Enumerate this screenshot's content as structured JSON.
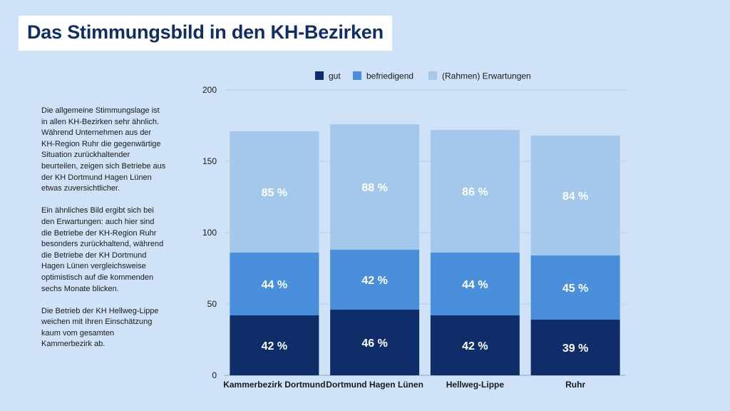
{
  "title": "Das Stimmungsbild in den KH-Bezirken",
  "paragraphs": [
    "Die allgemeine Stimmungslage ist in allen KH-Bezirken sehr ähnlich. Während Unternehmen aus der KH-Region Ruhr die gegenwärtige Situation zurückhaltender beurteilen, zeigen sich Betriebe aus der KH Dortmund Hagen Lünen etwas zuversichtlicher.",
    "Ein ähnliches Bild ergibt sich bei den Erwartungen: auch hier sind die Betriebe der KH-Region Ruhr besonders zurückhaltend, während die Betriebe der KH Dortmund Hagen Lünen vergleichsweise optimistisch auf die kommenden sechs Monate blicken.",
    "Die Betrieb der KH Hellweg-Lippe weichen mit Ihren Einschätzung kaum vom gesamten Kammerbezirk ab."
  ],
  "chart_data": {
    "type": "bar",
    "stacked": true,
    "categories": [
      "Kammerbezirk Dortmund",
      "Dortmund Hagen Lünen",
      "Hellweg-Lippe",
      "Ruhr"
    ],
    "series": [
      {
        "name": "gut",
        "values": [
          42,
          46,
          42,
          39
        ],
        "color": "#0f2d69"
      },
      {
        "name": "befriedigend",
        "values": [
          44,
          42,
          44,
          45
        ],
        "color": "#4a8fdb"
      },
      {
        "name": "(Rahmen) Erwartungen",
        "values": [
          85,
          88,
          86,
          84
        ],
        "color": "#a4c7ec"
      }
    ],
    "label_suffix": " %",
    "ylim": [
      0,
      200
    ],
    "yticks": [
      0,
      50,
      100,
      150,
      200
    ],
    "grid": true,
    "legend_position": "top"
  }
}
